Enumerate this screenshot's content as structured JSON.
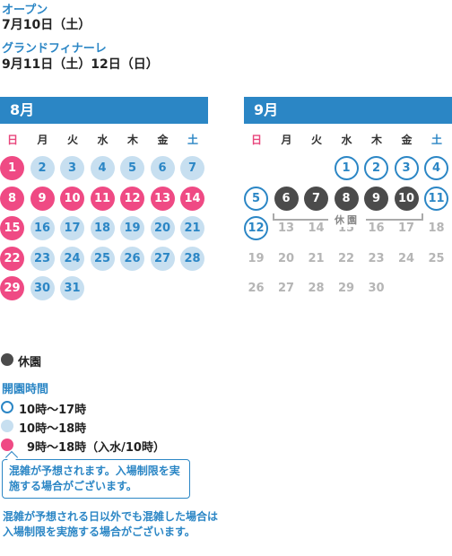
{
  "info": {
    "open_label": "オープン",
    "open_date": "7月10日（土）",
    "finale_label": "グランドフィナーレ",
    "finale_date": "9月11日（土）12日（日）"
  },
  "weekdays": [
    "日",
    "月",
    "火",
    "水",
    "木",
    "金",
    "土"
  ],
  "august": {
    "title": "8月",
    "days": [
      {
        "d": "1",
        "s": "pink"
      },
      {
        "d": "2",
        "s": "lb"
      },
      {
        "d": "3",
        "s": "lb"
      },
      {
        "d": "4",
        "s": "lb"
      },
      {
        "d": "5",
        "s": "lb"
      },
      {
        "d": "6",
        "s": "lb"
      },
      {
        "d": "7",
        "s": "lb"
      },
      {
        "d": "8",
        "s": "pink"
      },
      {
        "d": "9",
        "s": "pink"
      },
      {
        "d": "10",
        "s": "pink"
      },
      {
        "d": "11",
        "s": "pink"
      },
      {
        "d": "12",
        "s": "pink"
      },
      {
        "d": "13",
        "s": "pink"
      },
      {
        "d": "14",
        "s": "pink"
      },
      {
        "d": "15",
        "s": "pink"
      },
      {
        "d": "16",
        "s": "lb"
      },
      {
        "d": "17",
        "s": "lb"
      },
      {
        "d": "18",
        "s": "lb"
      },
      {
        "d": "19",
        "s": "lb"
      },
      {
        "d": "20",
        "s": "lb"
      },
      {
        "d": "21",
        "s": "lb"
      },
      {
        "d": "22",
        "s": "pink"
      },
      {
        "d": "23",
        "s": "lb"
      },
      {
        "d": "24",
        "s": "lb"
      },
      {
        "d": "25",
        "s": "lb"
      },
      {
        "d": "26",
        "s": "lb"
      },
      {
        "d": "27",
        "s": "lb"
      },
      {
        "d": "28",
        "s": "lb"
      },
      {
        "d": "29",
        "s": "pink"
      },
      {
        "d": "30",
        "s": "lb"
      },
      {
        "d": "31",
        "s": "lb"
      }
    ]
  },
  "september": {
    "title": "9月",
    "leading_blanks": 3,
    "days": [
      {
        "d": "1",
        "s": "outline"
      },
      {
        "d": "2",
        "s": "outline"
      },
      {
        "d": "3",
        "s": "outline"
      },
      {
        "d": "4",
        "s": "outline"
      },
      {
        "d": "5",
        "s": "outline"
      },
      {
        "d": "6",
        "s": "dark"
      },
      {
        "d": "7",
        "s": "dark"
      },
      {
        "d": "8",
        "s": "dark"
      },
      {
        "d": "9",
        "s": "dark"
      },
      {
        "d": "10",
        "s": "dark"
      },
      {
        "d": "11",
        "s": "outline"
      },
      {
        "d": "12",
        "s": "outline"
      },
      {
        "d": "13",
        "s": "grey"
      },
      {
        "d": "14",
        "s": "grey"
      },
      {
        "d": "15",
        "s": "grey"
      },
      {
        "d": "16",
        "s": "grey"
      },
      {
        "d": "17",
        "s": "grey"
      },
      {
        "d": "18",
        "s": "grey"
      },
      {
        "d": "19",
        "s": "grey"
      },
      {
        "d": "20",
        "s": "grey"
      },
      {
        "d": "21",
        "s": "grey"
      },
      {
        "d": "22",
        "s": "grey"
      },
      {
        "d": "23",
        "s": "grey"
      },
      {
        "d": "24",
        "s": "grey"
      },
      {
        "d": "25",
        "s": "grey"
      },
      {
        "d": "26",
        "s": "grey"
      },
      {
        "d": "27",
        "s": "grey"
      },
      {
        "d": "28",
        "s": "grey"
      },
      {
        "d": "29",
        "s": "grey"
      },
      {
        "d": "30",
        "s": "grey"
      }
    ],
    "closed_label": "休園"
  },
  "legend": {
    "closed": "休園",
    "hours_title": "開園時間",
    "items": [
      {
        "style": "outline",
        "text": "10時〜17時"
      },
      {
        "style": "lb",
        "text": "10時〜18時"
      },
      {
        "style": "pink",
        "text": "9時〜18時（入水/10時）"
      }
    ]
  },
  "notes": {
    "crowded": "混雑が予想されます。入場制限を実施する場合がございます。",
    "other_days": "混雑が予想される日以外でも混雑した場合は入場制限を実施する場合がございます。"
  },
  "colors": {
    "accent": "#2b86c5",
    "pink": "#ef4a84",
    "light_blue": "#c7dff0",
    "dark": "#4b4b4b",
    "grey_text": "#b5b5b5"
  }
}
